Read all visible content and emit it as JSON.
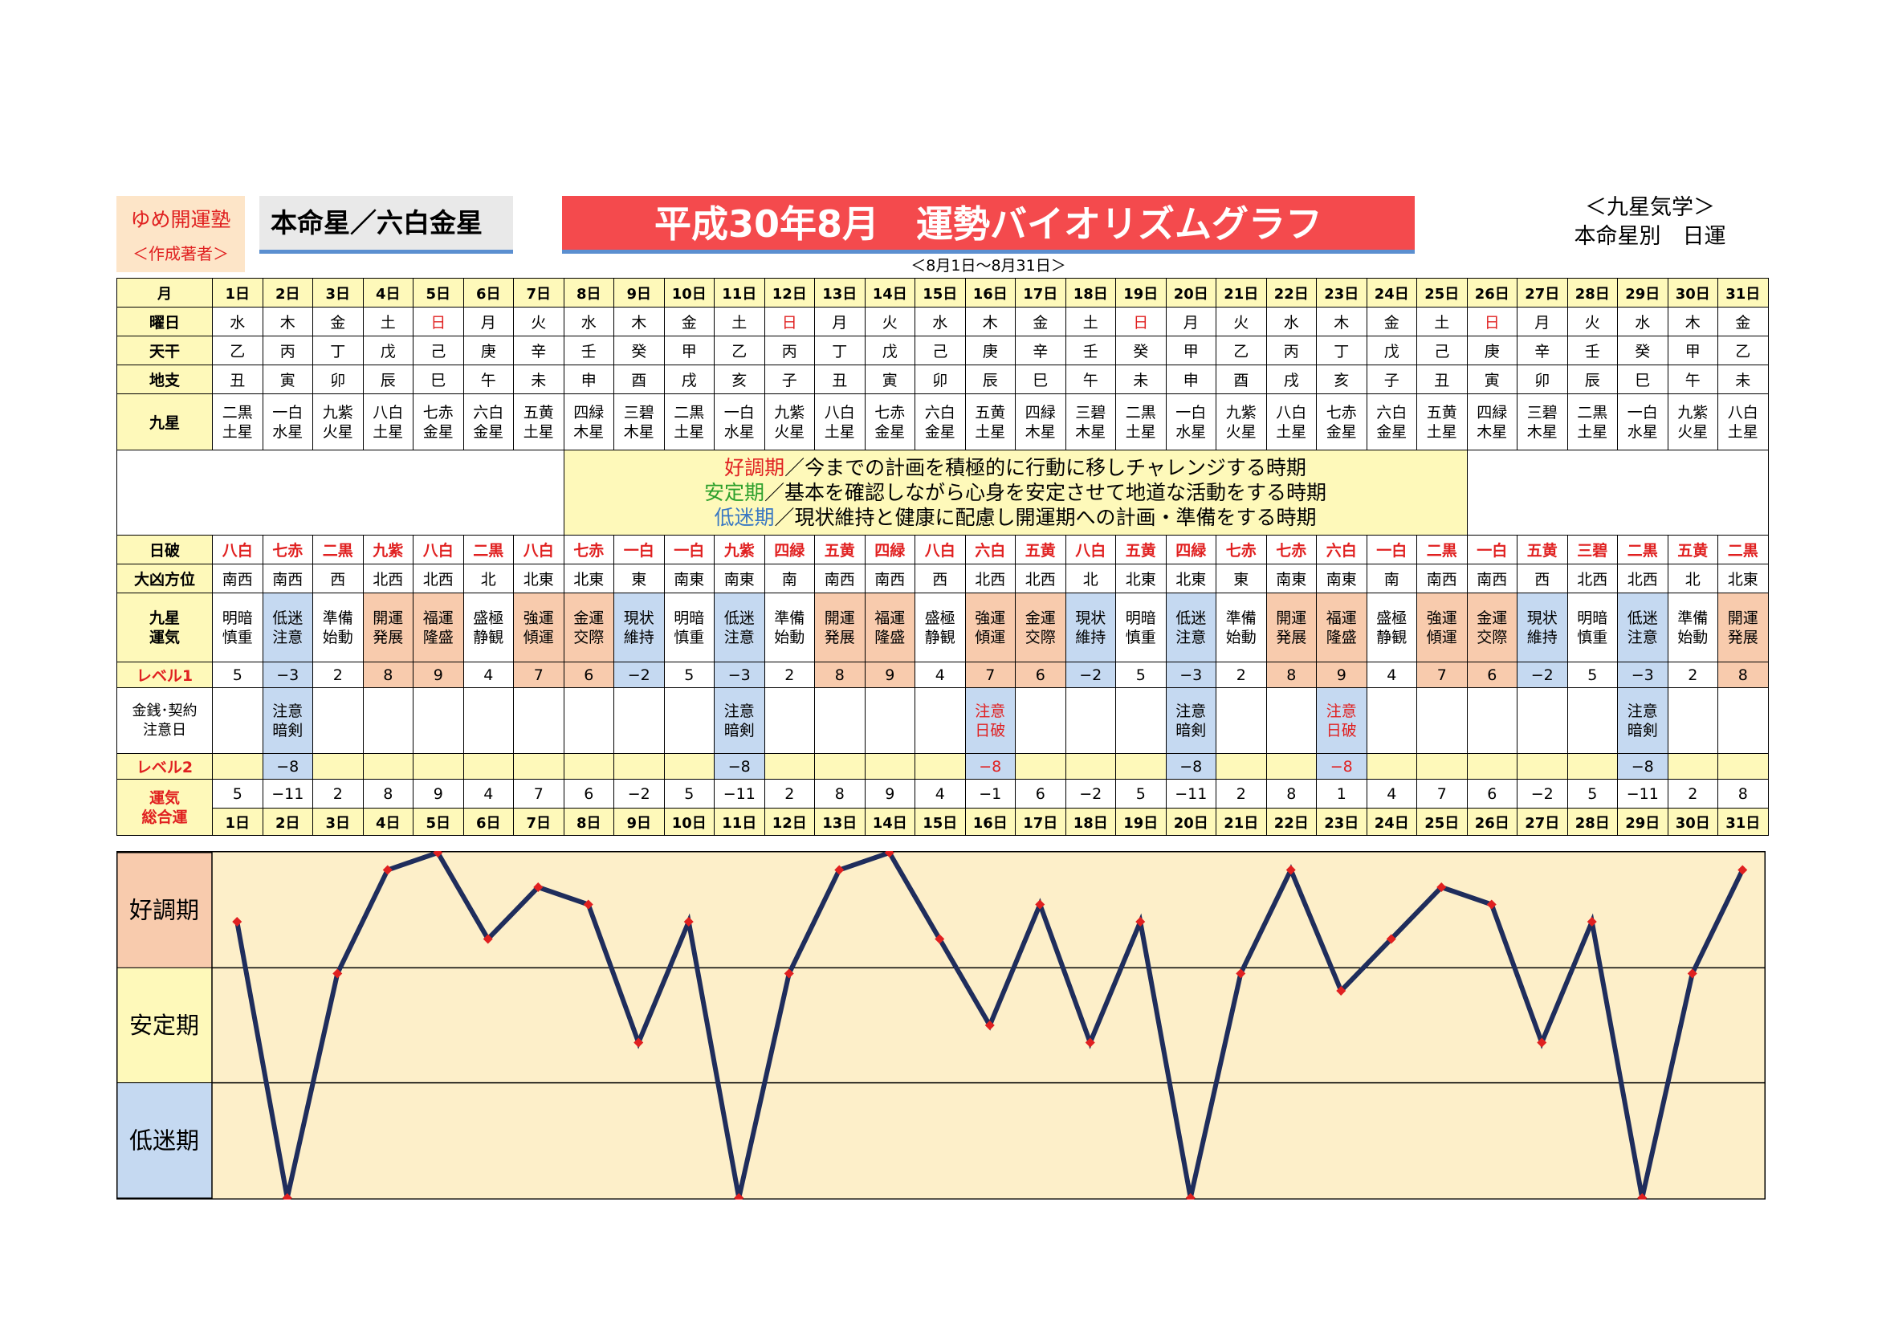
{
  "header": {
    "author_org": "ゆめ開運塾",
    "author_role": "＜作成著者＞",
    "honmei": "本命星／六白金星",
    "title": "平成30年8月　運勢バイオリズムグラフ",
    "subtitle": "＜8月1日～8月31日＞",
    "reference_line1": "＜九星気学＞",
    "reference_line2": "本命星別　日運"
  },
  "row_labels": {
    "month": "月",
    "weekday": "曜日",
    "tenkan": "天干",
    "chishi": "地支",
    "kyusei": "九星",
    "nippa": "日破",
    "daikyo": "大凶方位",
    "unki_line1": "九星",
    "unki_line2": "運気",
    "level1": "レベル1",
    "money_line1": "金銭･契約",
    "money_line2": "注意日",
    "level2": "レベル2",
    "total_line1": "運気",
    "total_line2": "総合運"
  },
  "days": [
    "1日",
    "2日",
    "3日",
    "4日",
    "5日",
    "6日",
    "7日",
    "8日",
    "9日",
    "10日",
    "11日",
    "12日",
    "13日",
    "14日",
    "15日",
    "16日",
    "17日",
    "18日",
    "19日",
    "20日",
    "21日",
    "22日",
    "23日",
    "24日",
    "25日",
    "26日",
    "27日",
    "28日",
    "29日",
    "30日",
    "31日"
  ],
  "weekdays": [
    "水",
    "木",
    "金",
    "土",
    "日",
    "月",
    "火",
    "水",
    "木",
    "金",
    "土",
    "日",
    "月",
    "火",
    "水",
    "木",
    "金",
    "土",
    "日",
    "月",
    "火",
    "水",
    "木",
    "金",
    "土",
    "日",
    "月",
    "火",
    "水",
    "木",
    "金"
  ],
  "tenkan": [
    "乙",
    "丙",
    "丁",
    "戊",
    "己",
    "庚",
    "辛",
    "壬",
    "癸",
    "甲",
    "乙",
    "丙",
    "丁",
    "戊",
    "己",
    "庚",
    "辛",
    "壬",
    "癸",
    "甲",
    "乙",
    "丙",
    "丁",
    "戊",
    "己",
    "庚",
    "辛",
    "壬",
    "癸",
    "甲",
    "乙"
  ],
  "chishi": [
    "丑",
    "寅",
    "卯",
    "辰",
    "巳",
    "午",
    "未",
    "申",
    "酉",
    "戌",
    "亥",
    "子",
    "丑",
    "寅",
    "卯",
    "辰",
    "巳",
    "午",
    "未",
    "申",
    "酉",
    "戌",
    "亥",
    "子",
    "丑",
    "寅",
    "卯",
    "辰",
    "巳",
    "午",
    "未"
  ],
  "kyusei_top": [
    "二黒",
    "一白",
    "九紫",
    "八白",
    "七赤",
    "六白",
    "五黄",
    "四緑",
    "三碧",
    "二黒",
    "一白",
    "九紫",
    "八白",
    "七赤",
    "六白",
    "五黄",
    "四緑",
    "三碧",
    "二黒",
    "一白",
    "九紫",
    "八白",
    "七赤",
    "六白",
    "五黄",
    "四緑",
    "三碧",
    "二黒",
    "一白",
    "九紫",
    "八白"
  ],
  "kyusei_bottom": [
    "土星",
    "水星",
    "火星",
    "土星",
    "金星",
    "金星",
    "土星",
    "木星",
    "木星",
    "土星",
    "水星",
    "火星",
    "土星",
    "金星",
    "金星",
    "土星",
    "木星",
    "木星",
    "土星",
    "水星",
    "火星",
    "土星",
    "金星",
    "金星",
    "土星",
    "木星",
    "木星",
    "土星",
    "水星",
    "火星",
    "土星"
  ],
  "legend": [
    {
      "term": "好調期",
      "text": "／今までの計画を積極的に行動に移しチャレンジする時期",
      "color": "#e02020"
    },
    {
      "term": "安定期",
      "text": "／基本を確認しながら心身を安定させて地道な活動をする時期",
      "color": "#2ca02c"
    },
    {
      "term": "低迷期",
      "text": "／現状維持と健康に配慮し開運期への計画・準備をする時期",
      "color": "#3a78c2"
    }
  ],
  "nippa": [
    "八白",
    "七赤",
    "二黒",
    "九紫",
    "八白",
    "二黒",
    "八白",
    "七赤",
    "一白",
    "一白",
    "九紫",
    "四緑",
    "五黄",
    "四緑",
    "八白",
    "六白",
    "五黄",
    "八白",
    "五黄",
    "四緑",
    "七赤",
    "七赤",
    "六白",
    "一白",
    "二黒",
    "一白",
    "五黄",
    "三碧",
    "二黒",
    "五黄",
    "二黒"
  ],
  "nippa_colors": {
    "red": "#e02020",
    "black": "#000000"
  },
  "daikyo": [
    "南西",
    "南西",
    "西",
    "北西",
    "北西",
    "北",
    "北東",
    "北東",
    "東",
    "南東",
    "南東",
    "南",
    "南西",
    "南西",
    "西",
    "北西",
    "北西",
    "北",
    "北東",
    "北東",
    "東",
    "南東",
    "南東",
    "南",
    "南西",
    "南西",
    "西",
    "北西",
    "北西",
    "北",
    "北東"
  ],
  "unki_top": [
    "明暗",
    "低迷",
    "準備",
    "開運",
    "福運",
    "盛極",
    "強運",
    "金運",
    "現状",
    "明暗",
    "低迷",
    "準備",
    "開運",
    "福運",
    "盛極",
    "強運",
    "金運",
    "現状",
    "明暗",
    "低迷",
    "準備",
    "開運",
    "福運",
    "盛極",
    "強運",
    "金運",
    "現状",
    "明暗",
    "低迷",
    "準備",
    "開運"
  ],
  "unki_bottom": [
    "慎重",
    "注意",
    "始動",
    "発展",
    "隆盛",
    "静観",
    "傾運",
    "交際",
    "維持",
    "慎重",
    "注意",
    "始動",
    "発展",
    "隆盛",
    "静観",
    "傾運",
    "交際",
    "維持",
    "慎重",
    "注意",
    "始動",
    "発展",
    "隆盛",
    "静観",
    "傾運",
    "交際",
    "維持",
    "慎重",
    "注意",
    "始動",
    "発展"
  ],
  "level1": [
    "5",
    "−3",
    "2",
    "8",
    "9",
    "4",
    "7",
    "6",
    "−2",
    "5",
    "−3",
    "2",
    "8",
    "9",
    "4",
    "7",
    "6",
    "−2",
    "5",
    "−3",
    "2",
    "8",
    "9",
    "4",
    "7",
    "6",
    "−2",
    "5",
    "−3",
    "2",
    "8"
  ],
  "money_top": [
    "",
    "注意",
    "",
    "",
    "",
    "",
    "",
    "",
    "",
    "",
    "注意",
    "",
    "",
    "",
    "",
    "注意",
    "",
    "",
    "",
    "注意",
    "",
    "",
    "注意",
    "",
    "",
    "",
    "",
    "",
    "注意",
    "",
    ""
  ],
  "money_bottom": [
    "",
    "暗剣",
    "",
    "",
    "",
    "",
    "",
    "",
    "",
    "",
    "暗剣",
    "",
    "",
    "",
    "",
    "日破",
    "",
    "",
    "",
    "暗剣",
    "",
    "",
    "日破",
    "",
    "",
    "",
    "",
    "",
    "暗剣",
    "",
    ""
  ],
  "level2": [
    "",
    "−8",
    "",
    "",
    "",
    "",
    "",
    "",
    "",
    "",
    "−8",
    "",
    "",
    "",
    "",
    "−8",
    "",
    "",
    "",
    "−8",
    "",
    "",
    "−8",
    "",
    "",
    "",
    "",
    "",
    "−8",
    "",
    ""
  ],
  "total": [
    "5",
    "−11",
    "2",
    "8",
    "9",
    "4",
    "7",
    "6",
    "−2",
    "5",
    "−11",
    "2",
    "8",
    "9",
    "4",
    "−1",
    "6",
    "−2",
    "5",
    "−11",
    "2",
    "8",
    "1",
    "4",
    "7",
    "6",
    "−2",
    "5",
    "−11",
    "2",
    "8"
  ],
  "colors": {
    "label_bg": "#fef9ba",
    "good_bg": "#f8cbad",
    "bad_bg": "#c5d9f1",
    "zone_good": "#f8cbad",
    "zone_stable": "#fef9ba",
    "zone_low": "#c5d9f1",
    "chart_bg": "#fdefc9",
    "line": "#1f2d5c",
    "marker": "#e02020"
  },
  "chart_data": {
    "type": "line",
    "categories": [
      "1日",
      "2日",
      "3日",
      "4日",
      "5日",
      "6日",
      "7日",
      "8日",
      "9日",
      "10日",
      "11日",
      "12日",
      "13日",
      "14日",
      "15日",
      "16日",
      "17日",
      "18日",
      "19日",
      "20日",
      "21日",
      "22日",
      "23日",
      "24日",
      "25日",
      "26日",
      "27日",
      "28日",
      "29日",
      "30日",
      "31日"
    ],
    "values": [
      5,
      -11,
      2,
      8,
      9,
      4,
      7,
      6,
      -2,
      5,
      -11,
      2,
      8,
      9,
      4,
      -1,
      6,
      -2,
      5,
      -11,
      2,
      8,
      1,
      4,
      7,
      6,
      -2,
      5,
      -11,
      2,
      8
    ],
    "ylim": [
      -11,
      9
    ],
    "zones": [
      {
        "label": "好調期",
        "from": 2.33,
        "to": 9
      },
      {
        "label": "安定期",
        "from": -4.33,
        "to": 2.33
      },
      {
        "label": "低迷期",
        "from": -11,
        "to": -4.33
      }
    ],
    "title": "",
    "xlabel": "",
    "ylabel": ""
  }
}
